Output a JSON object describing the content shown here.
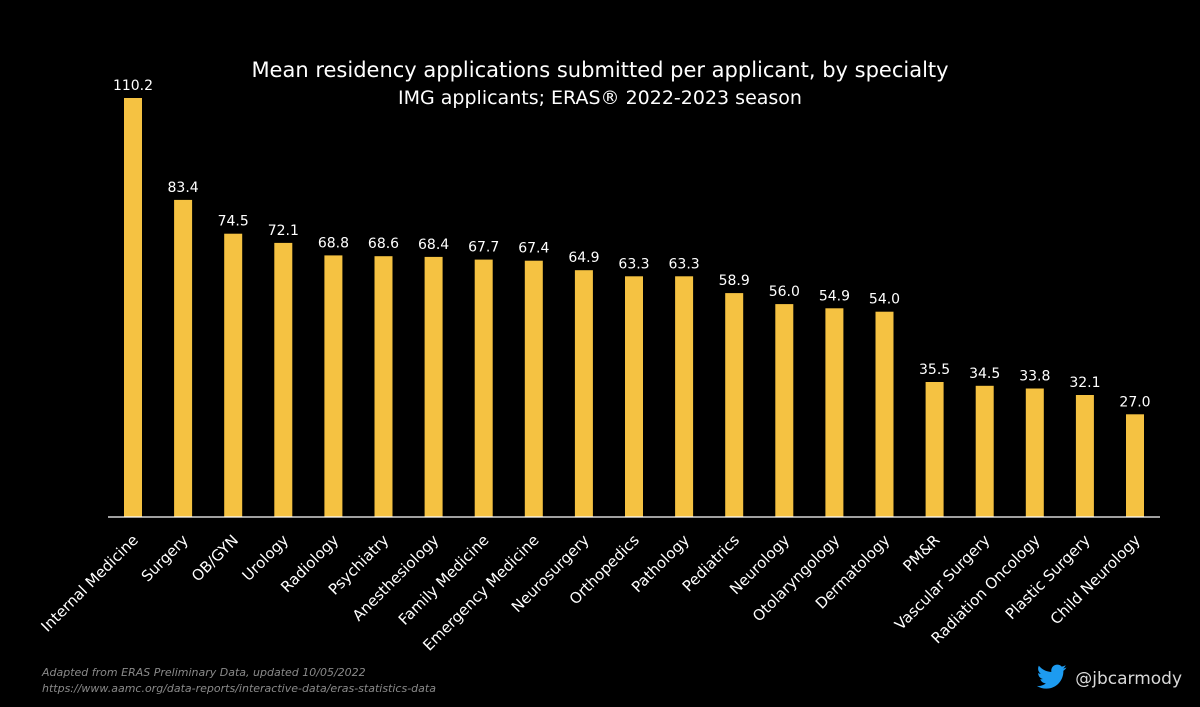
{
  "chart_data": {
    "type": "bar",
    "title": "Mean residency applications submitted per applicant, by specialty",
    "subtitle": "IMG applicants; ERAS® 2022-2023 season",
    "categories": [
      "Internal Medicine",
      "Surgery",
      "OB/GYN",
      "Urology",
      "Radiology",
      "Psychiatry",
      "Anesthesiology",
      "Family Medicine",
      "Emergency Medicine",
      "Neurosurgery",
      "Orthopedics",
      "Pathology",
      "Pediatrics",
      "Neurology",
      "Otolaryngology",
      "Dermatology",
      "PM&R",
      "Vascular Surgery",
      "Radiation Oncology",
      "Plastic Surgery",
      "Child Neurology"
    ],
    "values": [
      110.2,
      83.4,
      74.5,
      72.1,
      68.8,
      68.6,
      68.4,
      67.7,
      67.4,
      64.9,
      63.3,
      63.3,
      58.9,
      56.0,
      54.9,
      54.0,
      35.5,
      34.5,
      33.8,
      32.1,
      27.0
    ],
    "value_labels": [
      "110.2",
      "83.4",
      "74.5",
      "72.1",
      "68.8",
      "68.6",
      "68.4",
      "67.7",
      "67.4",
      "64.9",
      "63.3",
      "63.3",
      "58.9",
      "56.0",
      "54.9",
      "54.0",
      "35.5",
      "34.5",
      "33.8",
      "32.1",
      "27.0"
    ],
    "xlabel": "",
    "ylabel": "",
    "ylim": [
      0,
      110.2
    ],
    "grid": false,
    "bar_color": "#f5c242",
    "background": "#000000"
  },
  "footer": {
    "source_line1": "Adapted from ERAS Preliminary Data, updated 10/05/2022",
    "source_line2": "https://www.aamc.org/data-reports/interactive-data/eras-statistics-data",
    "handle": "@jbcarmody",
    "icon": "twitter-bird-icon",
    "icon_color": "#1d9bf0"
  }
}
